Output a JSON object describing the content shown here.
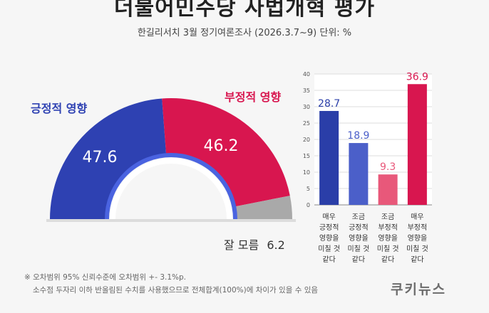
{
  "title": "더불어민주당 사법개혁 평가",
  "subtitle": "한길리서치 3월 정기여론조사 (2026.3.7~9) 단위: %",
  "colors": {
    "positive": "#2e41b2",
    "negative": "#d8164f",
    "unknown": "#a9a9a9",
    "very_positive": "#2a3ea8",
    "somewhat_positive": "#4b5fc9",
    "somewhat_negative": "#e8587a",
    "very_negative": "#d8164f"
  },
  "chart_data": [
    {
      "type": "pie",
      "style": "semicircle-donut",
      "slices": [
        {
          "key": "positive",
          "label": "긍정적 영향",
          "value": 47.6
        },
        {
          "key": "negative",
          "label": "부정적 영향",
          "value": 46.2
        },
        {
          "key": "unknown",
          "label": "잘 모름",
          "value": 6.2
        }
      ]
    },
    {
      "type": "bar",
      "categories": [
        [
          "매우",
          "긍정적",
          "영향을",
          "미칠 것",
          "같다"
        ],
        [
          "조금",
          "긍정적",
          "영향을",
          "미칠 것",
          "같다"
        ],
        [
          "조금",
          "부정적",
          "영향을",
          "미칠 것",
          "같다"
        ],
        [
          "매우",
          "부정적",
          "영향을",
          "미칠 것",
          "같다"
        ]
      ],
      "values": [
        28.7,
        18.9,
        9.3,
        36.9
      ],
      "value_labels": [
        "28.7",
        "18.9",
        "9.3",
        "36.9"
      ],
      "yticks": [
        "0",
        "5",
        "10",
        "15",
        "20",
        "25",
        "30",
        "35",
        "40"
      ],
      "ylim": [
        0,
        40
      ],
      "grid": true
    }
  ],
  "notes": [
    "※ 오차범위 95% 신뢰수준에 오차범위 +- 3.1%p.",
    "소수점 두자리 이하 반올림된 수치를 사용했으므로 전체합계(100%)에 차이가 있을 수 있음"
  ],
  "logo": "쿠키뉴스"
}
